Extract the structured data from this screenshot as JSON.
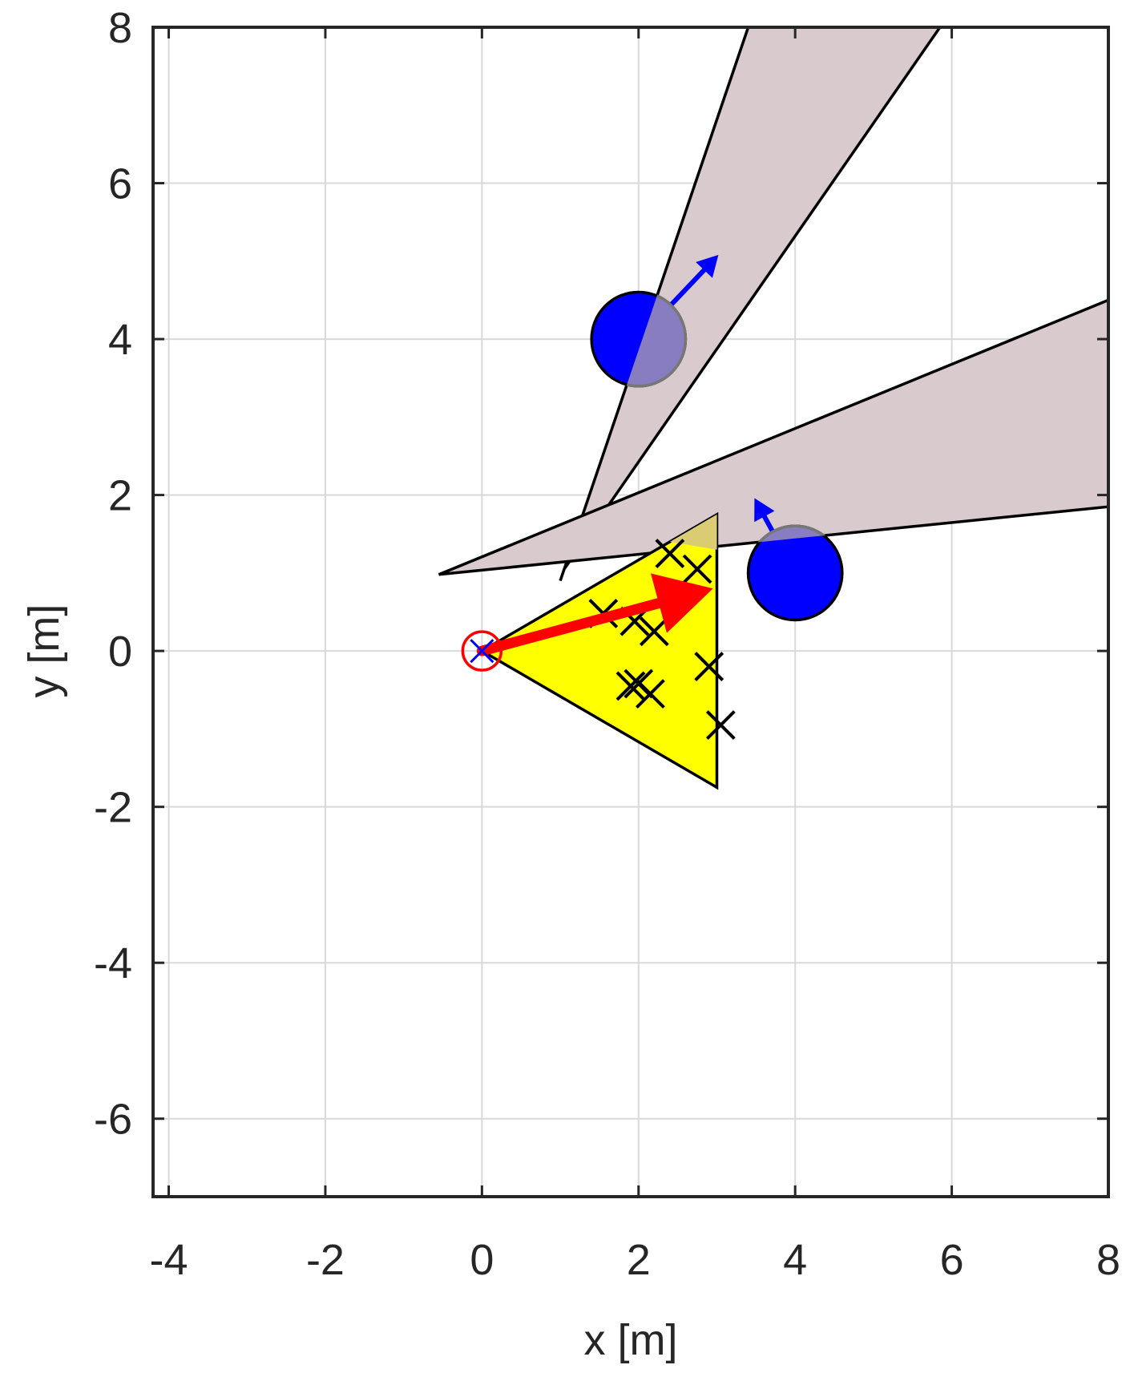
{
  "chart_data": {
    "type": "scatter",
    "title": "",
    "xlabel": "x [m]",
    "ylabel": "y [m]",
    "xlim": [
      -4.2,
      8
    ],
    "ylim": [
      -7,
      8
    ],
    "xticks": [
      -4,
      -2,
      0,
      2,
      4,
      6,
      8
    ],
    "xtick_labels": [
      "-4",
      "-2",
      "0",
      "2",
      "4",
      "6",
      "8"
    ],
    "yticks": [
      -6,
      -4,
      -2,
      0,
      2,
      4,
      6,
      8
    ],
    "ytick_labels": [
      "-6",
      "-4",
      "-2",
      "0",
      "2",
      "4",
      "6",
      "8"
    ],
    "grid": true,
    "colors": {
      "shadow_fill": "#d8cacd",
      "fov_fill": "#ffff00",
      "obstacle": "#0000ff",
      "robot": "#ff0000",
      "axis": "#262626",
      "grid": "#d9d9d9"
    },
    "shadow_regions": [
      {
        "name": "",
        "points": [
          [
            1.0,
            0.9
          ],
          [
            3.4,
            8.0
          ],
          [
            5.85,
            8.0
          ],
          [
            1.05,
            1.05
          ]
        ]
      },
      {
        "name": "",
        "points": [
          [
            -0.55,
            0.98
          ],
          [
            8.0,
            4.5
          ],
          [
            8.0,
            1.85
          ],
          [
            -0.45,
            0.99
          ]
        ]
      }
    ],
    "fov": {
      "points": [
        [
          0,
          0
        ],
        [
          3.0,
          1.75
        ],
        [
          3.0,
          -1.75
        ]
      ]
    },
    "fov_overlap": {
      "points": [
        [
          2.4,
          1.4
        ],
        [
          3.0,
          1.75
        ],
        [
          3.0,
          1.3
        ]
      ]
    },
    "obstacles": [
      {
        "center": [
          2.0,
          4.0
        ],
        "radius": 0.6,
        "velocity": [
          1.02,
          1.08
        ]
      },
      {
        "center": [
          4.0,
          1.0
        ],
        "radius": 0.6,
        "velocity": [
          -0.52,
          0.96
        ]
      }
    ],
    "robot": {
      "position": [
        0,
        0
      ],
      "heading_end": [
        2.95,
        0.8
      ]
    },
    "samples": {
      "x": [
        1.55,
        1.95,
        2.2,
        2.4,
        2.75,
        2.9,
        1.9,
        2.0,
        2.15,
        3.05
      ],
      "y": [
        0.48,
        0.38,
        0.25,
        1.25,
        1.05,
        -0.2,
        -0.45,
        -0.42,
        -0.55,
        -0.95
      ]
    }
  }
}
